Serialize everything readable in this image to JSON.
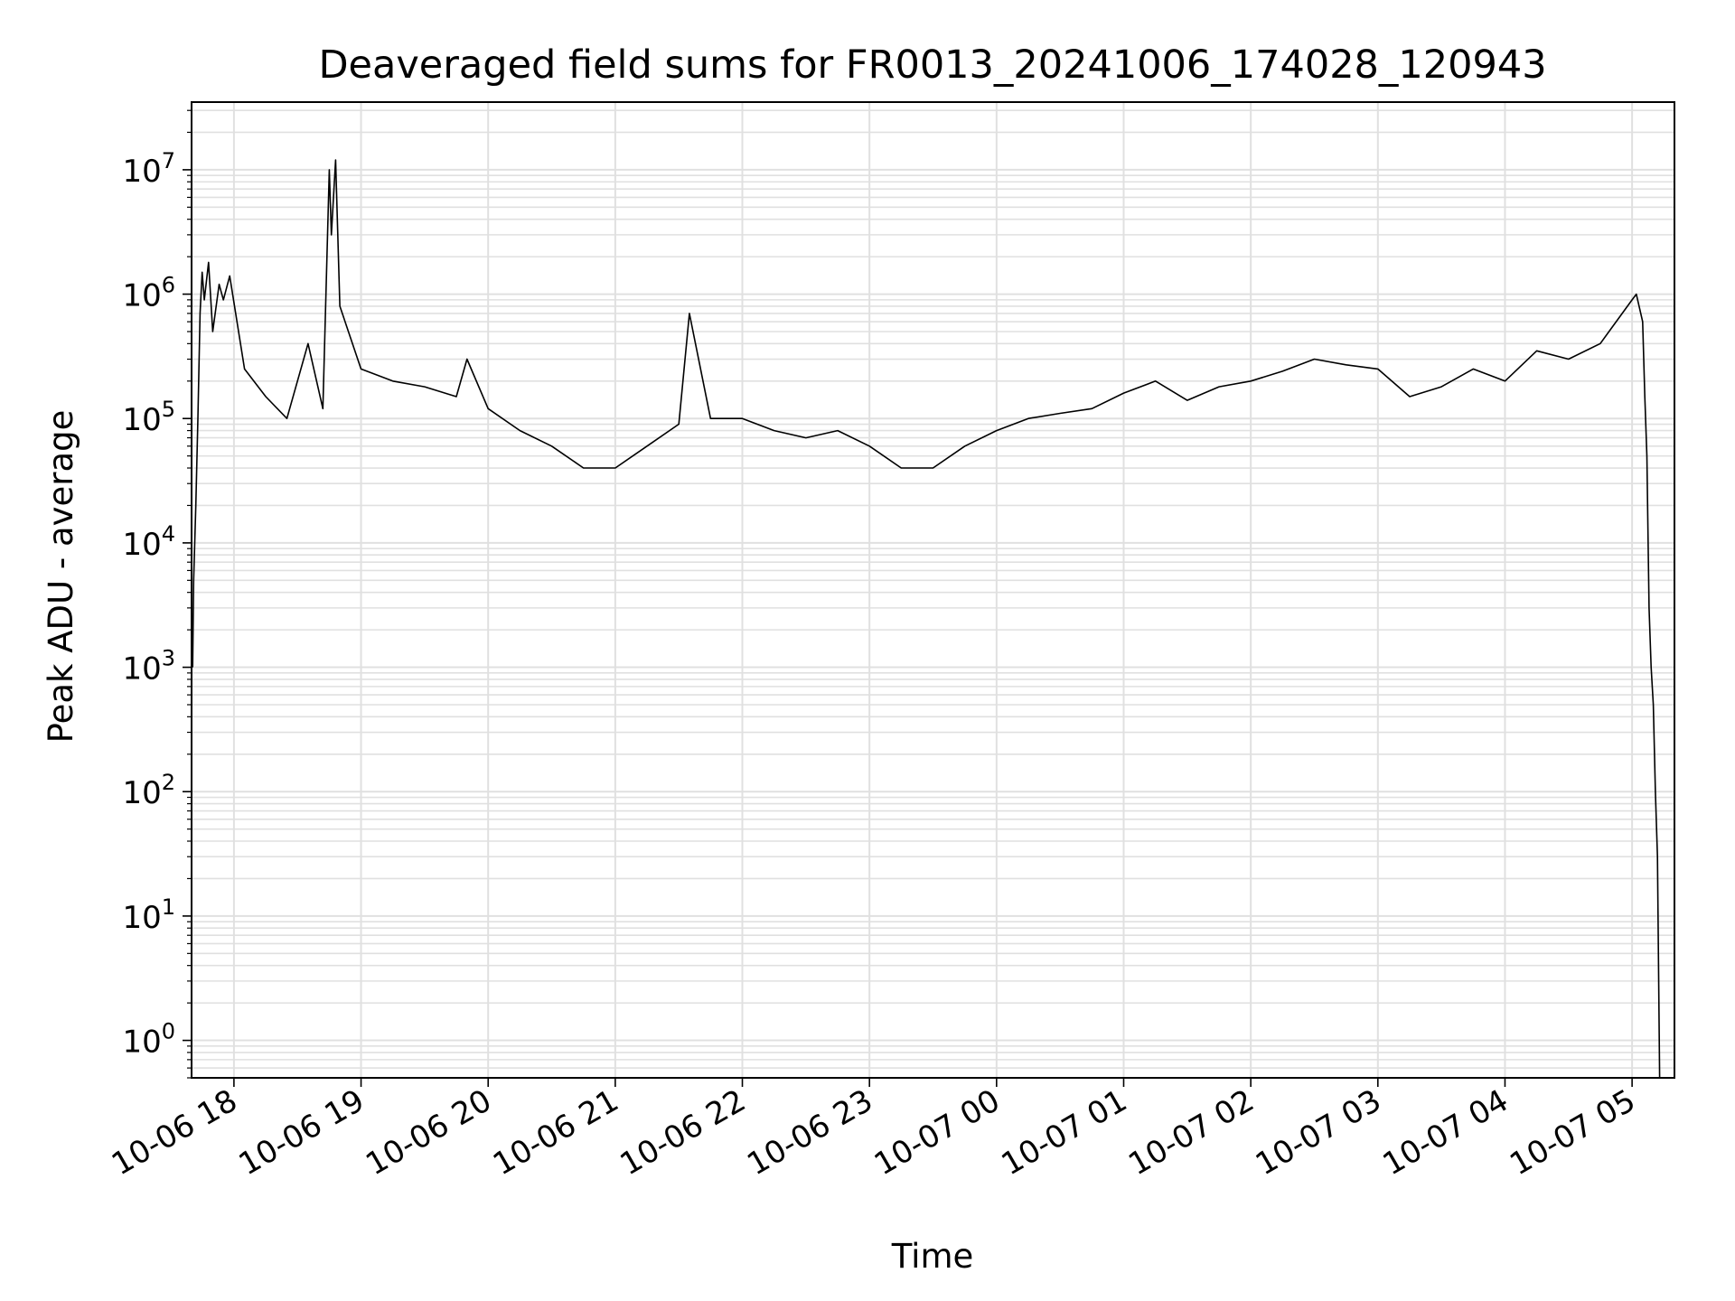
{
  "chart_data": {
    "type": "line",
    "title": "Deaveraged field sums for FR0013_20241006_174028_120943",
    "xlabel": "Time",
    "ylabel": "Peak ADU - average",
    "yscale": "log",
    "ylim": [
      0.5,
      35000000
    ],
    "xlim": [
      "2024-10-06 17:40",
      "2024-10-07 05:20"
    ],
    "grid": true,
    "series_color": "#000000",
    "grid_color": "#e0e0e0",
    "x_ticks": [
      {
        "value": "2024-10-06 18:00",
        "label": "10-06 18"
      },
      {
        "value": "2024-10-06 19:00",
        "label": "10-06 19"
      },
      {
        "value": "2024-10-06 20:00",
        "label": "10-06 20"
      },
      {
        "value": "2024-10-06 21:00",
        "label": "10-06 21"
      },
      {
        "value": "2024-10-06 22:00",
        "label": "10-06 22"
      },
      {
        "value": "2024-10-06 23:00",
        "label": "10-06 23"
      },
      {
        "value": "2024-10-07 00:00",
        "label": "10-07 00"
      },
      {
        "value": "2024-10-07 01:00",
        "label": "10-07 01"
      },
      {
        "value": "2024-10-07 02:00",
        "label": "10-07 02"
      },
      {
        "value": "2024-10-07 03:00",
        "label": "10-07 03"
      },
      {
        "value": "2024-10-07 04:00",
        "label": "10-07 04"
      },
      {
        "value": "2024-10-07 05:00",
        "label": "10-07 05"
      }
    ],
    "y_ticks": [
      {
        "value": 1,
        "base": "10",
        "exp": "0"
      },
      {
        "value": 10,
        "base": "10",
        "exp": "1"
      },
      {
        "value": 100,
        "base": "10",
        "exp": "2"
      },
      {
        "value": 1000,
        "base": "10",
        "exp": "3"
      },
      {
        "value": 10000,
        "base": "10",
        "exp": "4"
      },
      {
        "value": 100000,
        "base": "10",
        "exp": "5"
      },
      {
        "value": 1000000,
        "base": "10",
        "exp": "6"
      },
      {
        "value": 10000000,
        "base": "10",
        "exp": "7"
      }
    ],
    "series": [
      {
        "x": [
          "2024-10-06 17:40:30",
          "2024-10-06 17:41",
          "2024-10-06 17:42",
          "2024-10-06 17:43",
          "2024-10-06 17:44",
          "2024-10-06 17:45",
          "2024-10-06 17:46",
          "2024-10-06 17:48",
          "2024-10-06 17:50",
          "2024-10-06 17:53",
          "2024-10-06 17:55",
          "2024-10-06 17:58",
          "2024-10-06 18:05",
          "2024-10-06 18:15",
          "2024-10-06 18:25",
          "2024-10-06 18:35",
          "2024-10-06 18:42",
          "2024-10-06 18:45",
          "2024-10-06 18:46",
          "2024-10-06 18:48",
          "2024-10-06 18:50",
          "2024-10-06 19:00",
          "2024-10-06 19:15",
          "2024-10-06 19:30",
          "2024-10-06 19:45",
          "2024-10-06 19:50",
          "2024-10-06 20:00",
          "2024-10-06 20:15",
          "2024-10-06 20:30",
          "2024-10-06 20:45",
          "2024-10-06 21:00",
          "2024-10-06 21:15",
          "2024-10-06 21:30",
          "2024-10-06 21:35",
          "2024-10-06 21:45",
          "2024-10-06 22:00",
          "2024-10-06 22:15",
          "2024-10-06 22:30",
          "2024-10-06 22:45",
          "2024-10-06 23:00",
          "2024-10-06 23:15",
          "2024-10-06 23:30",
          "2024-10-06 23:45",
          "2024-10-07 00:00",
          "2024-10-07 00:15",
          "2024-10-07 00:30",
          "2024-10-07 00:45",
          "2024-10-07 01:00",
          "2024-10-07 01:15",
          "2024-10-07 01:30",
          "2024-10-07 01:45",
          "2024-10-07 02:00",
          "2024-10-07 02:15",
          "2024-10-07 02:30",
          "2024-10-07 02:45",
          "2024-10-07 03:00",
          "2024-10-07 03:15",
          "2024-10-07 03:30",
          "2024-10-07 03:45",
          "2024-10-07 04:00",
          "2024-10-07 04:15",
          "2024-10-07 04:30",
          "2024-10-07 04:45",
          "2024-10-07 05:00",
          "2024-10-07 05:02",
          "2024-10-07 05:05",
          "2024-10-07 05:06",
          "2024-10-07 05:07",
          "2024-10-07 05:08",
          "2024-10-07 05:09",
          "2024-10-07 05:10",
          "2024-10-07 05:11",
          "2024-10-07 05:12",
          "2024-10-07 05:13"
        ],
        "y": [
          1000,
          5000,
          20000,
          100000,
          700000,
          1500000,
          900000,
          1800000,
          500000,
          1200000,
          900000,
          1400000,
          250000,
          150000,
          100000,
          400000,
          120000,
          10000000,
          3000000,
          12000000,
          800000,
          250000,
          200000,
          180000,
          150000,
          300000,
          120000,
          80000,
          60000,
          40000,
          40000,
          60000,
          90000,
          700000,
          100000,
          100000,
          80000,
          70000,
          80000,
          60000,
          40000,
          40000,
          60000,
          80000,
          100000,
          110000,
          120000,
          160000,
          200000,
          140000,
          180000,
          200000,
          240000,
          300000,
          270000,
          250000,
          150000,
          180000,
          250000,
          200000,
          350000,
          300000,
          400000,
          900000,
          1000000,
          600000,
          150000,
          50000,
          3000,
          1000,
          500,
          100,
          30,
          0.4
        ]
      }
    ]
  }
}
